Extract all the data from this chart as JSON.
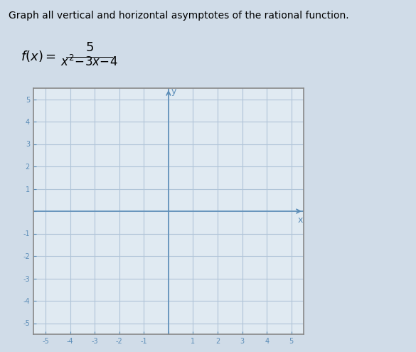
{
  "title_text": "Graph all vertical and horizontal asymptotes of the rational function.",
  "xlim": [
    -5.5,
    5.5
  ],
  "ylim": [
    -5.5,
    5.5
  ],
  "grid_color": "#b0c4d8",
  "axis_color": "#5b8db8",
  "tick_label_color": "#5b8db8",
  "background_color": "#d0dce8",
  "plot_bg_color": "#e0eaf2",
  "border_color": "#888888",
  "title_fontsize": 10,
  "formula_fontsize": 13
}
